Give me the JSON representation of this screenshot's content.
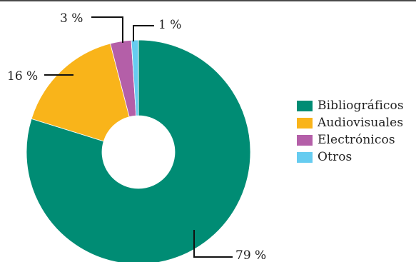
{
  "chart_data": {
    "type": "donut",
    "title": "",
    "categories": [
      "Bibliográficos",
      "Audiovisuales",
      "Electrónicos",
      "Otros"
    ],
    "values": [
      79,
      16,
      3,
      1
    ],
    "data_labels": [
      "79 %",
      "16 %",
      "3 %",
      "1 %"
    ],
    "colors": [
      "#008c74",
      "#f9b41a",
      "#b45fa8",
      "#66ccf0"
    ],
    "legend_position": "right",
    "legend": [
      {
        "label": "Bibliográficos",
        "color": "#008c74"
      },
      {
        "label": "Audiovisuales",
        "color": "#f9b41a"
      },
      {
        "label": "Electrónicos",
        "color": "#b45fa8"
      },
      {
        "label": "Otros",
        "color": "#66ccf0"
      }
    ]
  }
}
